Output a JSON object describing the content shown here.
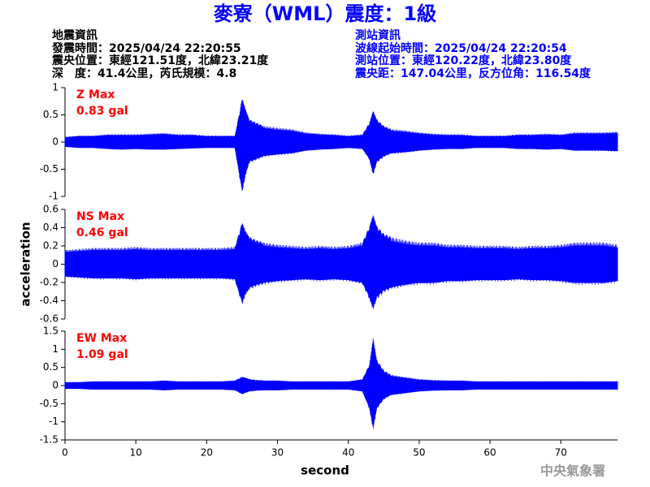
{
  "header": {
    "title": "麥寮（WML）震度：1級",
    "left": [
      "地震資訊",
      "發震時間：2025/04/24 22:20:55",
      "震央位置：東經121.51度，北緯23.21度",
      "深　度：41.4公里，芮氏規模：4.8"
    ],
    "right": [
      "測站資訊",
      "波線起始時間：2025/04/24 22:20:54",
      "測站位置：東經120.22度，北緯23.80度",
      "震央距：147.04公里，反方位角：116.54度"
    ],
    "watermark": "中央氣象署"
  },
  "chart_data": [
    {
      "type": "area",
      "label": "Z Max",
      "max_label": "0.83 gal",
      "color": "#0000ff",
      "x": [
        0,
        2,
        4,
        6,
        8,
        10,
        12,
        14,
        16,
        18,
        20,
        22,
        24,
        25,
        25.5,
        26,
        27,
        28,
        30,
        32,
        34,
        36,
        38,
        40,
        42,
        43,
        43.5,
        44,
        45,
        46,
        48,
        50,
        52,
        54,
        56,
        58,
        60,
        62,
        64,
        66,
        68,
        70,
        72,
        74,
        76,
        78
      ],
      "upper": [
        0.08,
        0.1,
        0.1,
        0.12,
        0.12,
        0.12,
        0.13,
        0.14,
        0.12,
        0.12,
        0.1,
        0.1,
        0.1,
        0.67,
        0.5,
        0.35,
        0.3,
        0.25,
        0.22,
        0.2,
        0.15,
        0.13,
        0.12,
        0.1,
        0.12,
        0.3,
        0.48,
        0.35,
        0.25,
        0.2,
        0.18,
        0.15,
        0.13,
        0.12,
        0.12,
        0.1,
        0.1,
        0.1,
        0.12,
        0.12,
        0.13,
        0.12,
        0.15,
        0.15,
        0.15,
        0.16
      ],
      "lower": [
        -0.08,
        -0.1,
        -0.1,
        -0.12,
        -0.13,
        -0.12,
        -0.13,
        -0.13,
        -0.12,
        -0.11,
        -0.1,
        -0.1,
        -0.1,
        -0.85,
        -0.55,
        -0.35,
        -0.3,
        -0.25,
        -0.22,
        -0.2,
        -0.15,
        -0.13,
        -0.12,
        -0.1,
        -0.12,
        -0.3,
        -0.55,
        -0.35,
        -0.25,
        -0.2,
        -0.18,
        -0.15,
        -0.13,
        -0.12,
        -0.12,
        -0.1,
        -0.1,
        -0.1,
        -0.12,
        -0.12,
        -0.13,
        -0.12,
        -0.15,
        -0.15,
        -0.15,
        -0.16
      ],
      "ylim": [
        -1,
        1
      ],
      "yticks": [
        -1,
        -0.5,
        0,
        0.5,
        1
      ]
    },
    {
      "type": "area",
      "label": "NS Max",
      "max_label": "0.46 gal",
      "color": "#0000ff",
      "ylabel": "acceleration",
      "x": [
        0,
        2,
        4,
        6,
        8,
        10,
        12,
        14,
        16,
        18,
        20,
        22,
        24,
        25,
        25.5,
        26,
        27,
        28,
        30,
        32,
        34,
        36,
        38,
        40,
        42,
        43,
        43.5,
        44,
        45,
        46,
        48,
        50,
        52,
        54,
        56,
        58,
        60,
        62,
        64,
        66,
        68,
        70,
        72,
        74,
        76,
        78
      ],
      "upper": [
        0.13,
        0.14,
        0.15,
        0.15,
        0.15,
        0.16,
        0.15,
        0.15,
        0.15,
        0.15,
        0.15,
        0.15,
        0.16,
        0.38,
        0.3,
        0.25,
        0.22,
        0.2,
        0.18,
        0.17,
        0.16,
        0.17,
        0.16,
        0.17,
        0.2,
        0.35,
        0.45,
        0.35,
        0.28,
        0.25,
        0.22,
        0.2,
        0.2,
        0.18,
        0.18,
        0.17,
        0.17,
        0.17,
        0.16,
        0.17,
        0.17,
        0.18,
        0.2,
        0.2,
        0.2,
        0.18
      ],
      "lower": [
        -0.13,
        -0.14,
        -0.15,
        -0.15,
        -0.15,
        -0.16,
        -0.15,
        -0.15,
        -0.15,
        -0.15,
        -0.15,
        -0.15,
        -0.16,
        -0.4,
        -0.3,
        -0.25,
        -0.22,
        -0.2,
        -0.18,
        -0.17,
        -0.16,
        -0.17,
        -0.16,
        -0.17,
        -0.2,
        -0.35,
        -0.45,
        -0.35,
        -0.28,
        -0.25,
        -0.22,
        -0.2,
        -0.2,
        -0.18,
        -0.18,
        -0.17,
        -0.17,
        -0.17,
        -0.16,
        -0.17,
        -0.17,
        -0.18,
        -0.2,
        -0.2,
        -0.2,
        -0.18
      ],
      "ylim": [
        -0.6,
        0.6
      ],
      "yticks": [
        -0.6,
        -0.4,
        -0.2,
        0,
        0.2,
        0.4,
        0.6
      ]
    },
    {
      "type": "area",
      "label": "EW Max",
      "max_label": "1.09 gal",
      "color": "#0000ff",
      "xlabel": "second",
      "x": [
        0,
        2,
        4,
        6,
        8,
        10,
        12,
        14,
        16,
        18,
        20,
        22,
        24,
        25,
        25.5,
        26,
        27,
        28,
        30,
        32,
        34,
        36,
        38,
        40,
        42,
        43,
        43.5,
        44,
        45,
        46,
        48,
        50,
        52,
        54,
        56,
        58,
        60,
        62,
        64,
        66,
        68,
        70,
        72,
        74,
        76,
        78
      ],
      "upper": [
        0.08,
        0.08,
        0.1,
        0.1,
        0.1,
        0.1,
        0.1,
        0.12,
        0.1,
        0.1,
        0.1,
        0.1,
        0.12,
        0.2,
        0.18,
        0.15,
        0.13,
        0.12,
        0.12,
        0.1,
        0.1,
        0.1,
        0.1,
        0.1,
        0.15,
        0.5,
        1.09,
        0.6,
        0.35,
        0.25,
        0.2,
        0.15,
        0.13,
        0.12,
        0.12,
        0.1,
        0.1,
        0.1,
        0.1,
        0.1,
        0.1,
        0.1,
        0.1,
        0.1,
        0.1,
        0.1
      ],
      "lower": [
        -0.08,
        -0.08,
        -0.1,
        -0.1,
        -0.1,
        -0.1,
        -0.1,
        -0.12,
        -0.1,
        -0.1,
        -0.1,
        -0.1,
        -0.12,
        -0.22,
        -0.18,
        -0.15,
        -0.13,
        -0.12,
        -0.12,
        -0.1,
        -0.1,
        -0.1,
        -0.1,
        -0.1,
        -0.15,
        -0.6,
        -1.1,
        -0.6,
        -0.35,
        -0.25,
        -0.2,
        -0.15,
        -0.13,
        -0.12,
        -0.12,
        -0.1,
        -0.1,
        -0.1,
        -0.1,
        -0.1,
        -0.1,
        -0.1,
        -0.1,
        -0.1,
        -0.1,
        -0.1
      ],
      "ylim": [
        -1.5,
        1.5
      ],
      "yticks": [
        -1.5,
        -1,
        -0.5,
        0,
        0.5,
        1,
        1.5
      ],
      "xlim": [
        0,
        78
      ],
      "xticks": [
        0,
        10,
        20,
        30,
        40,
        50,
        60,
        70
      ]
    }
  ]
}
